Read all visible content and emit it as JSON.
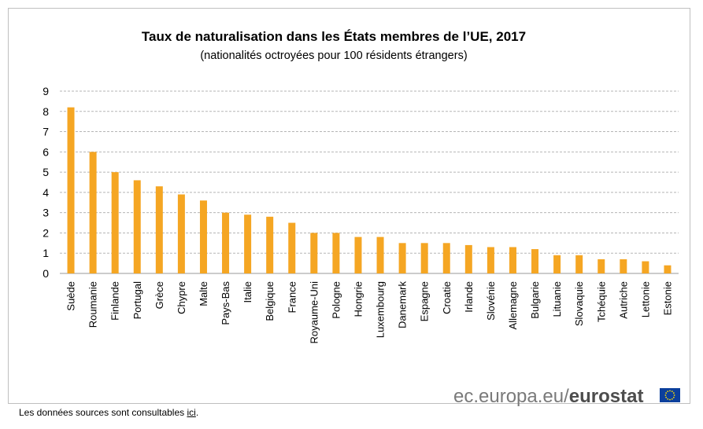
{
  "chart_data": {
    "type": "bar",
    "title": "Taux de naturalisation dans les États membres de l’UE, 2017",
    "subtitle": "(nationalités octroyées pour 100 résidents étrangers)",
    "categories": [
      "Suède",
      "Roumanie",
      "Finlande",
      "Portugal",
      "Grèce",
      "Chypre",
      "Malte",
      "Pays-Bas",
      "Italie",
      "Belgique",
      "France",
      "Royaume-Uni",
      "Pologne",
      "Hongrie",
      "Luxembourg",
      "Danemark",
      "Espagne",
      "Croatie",
      "Irlande",
      "Slovénie",
      "Allemagne",
      "Bulgarie",
      "Lituanie",
      "Slovaquie",
      "Tchéquie",
      "Autriche",
      "Lettonie",
      "Estonie"
    ],
    "values": [
      8.2,
      6.0,
      5.0,
      4.6,
      4.3,
      3.9,
      3.6,
      3.0,
      2.9,
      2.8,
      2.5,
      2.0,
      2.0,
      1.8,
      1.8,
      1.5,
      1.5,
      1.5,
      1.4,
      1.3,
      1.3,
      1.2,
      0.9,
      0.9,
      0.7,
      0.7,
      0.6,
      0.4
    ],
    "ylim": [
      0,
      9
    ],
    "yticks": [
      0,
      1,
      2,
      3,
      4,
      5,
      6,
      7,
      8,
      9
    ],
    "grid": true,
    "bar_color": "#f5a623",
    "xlabel": "",
    "ylabel": ""
  },
  "branding": {
    "domain": "ec.europa.eu",
    "separator": "/",
    "name": "eurostat",
    "flag_color": "#0b3f9c",
    "star_color": "#ffdd00"
  },
  "footnote": {
    "text": "Les données sources sont consultables ",
    "link": "ici",
    "end": "."
  }
}
